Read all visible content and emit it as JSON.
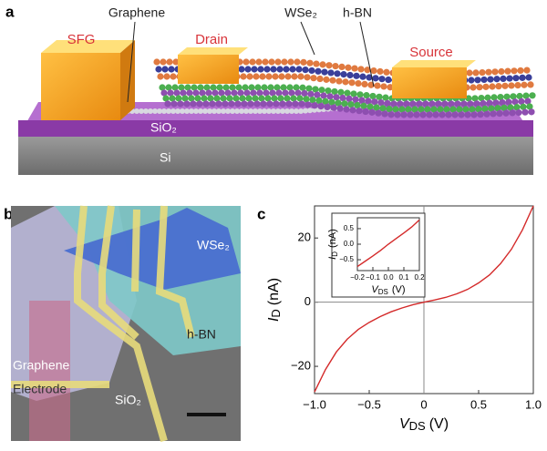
{
  "panel_a": {
    "label": "a",
    "texts": {
      "sfg": "SFG",
      "drain": "Drain",
      "source": "Source",
      "graphene": "Graphene",
      "wse2": "WSe₂",
      "hbn": "h-BN",
      "sio2": "SiO₂",
      "si": "Si"
    }
  },
  "panel_b": {
    "label": "b",
    "texts": {
      "wse2": "WSe₂",
      "hbn": "h-BN",
      "graphene": "Graphene",
      "electrode": "Electrode",
      "sio2": "SiO₂"
    }
  },
  "panel_c": {
    "label": "c"
  },
  "chart_data": [
    {
      "type": "line",
      "color": "#d42a2a",
      "zero_lines": true,
      "xlabel": {
        "symbol": "V",
        "subscript": "DS",
        "unit": "(V)"
      },
      "ylabel": {
        "symbol": "I",
        "subscript": "D",
        "unit": "(nA)"
      },
      "x": [
        -1.0,
        -0.9,
        -0.8,
        -0.7,
        -0.6,
        -0.5,
        -0.4,
        -0.3,
        -0.2,
        -0.1,
        0,
        0.1,
        0.2,
        0.3,
        0.4,
        0.5,
        0.6,
        0.7,
        0.8,
        0.9,
        1.0
      ],
      "values": [
        -28,
        -21,
        -15.5,
        -11.5,
        -8.5,
        -6.3,
        -4.5,
        -3,
        -1.8,
        -0.8,
        0,
        0.7,
        1.5,
        2.6,
        4,
        6,
        8.5,
        12,
        16.5,
        22.5,
        30
      ],
      "xlim": [
        -1,
        1
      ],
      "ylim": [
        -28.5,
        30
      ],
      "xticks": [
        {
          "value": -1,
          "label": "−1.0"
        },
        {
          "value": -0.5,
          "label": "−0.5"
        },
        0,
        0.5,
        {
          "value": 1,
          "label": "1.0"
        }
      ],
      "yticks": [
        {
          "value": -20,
          "label": "−20"
        },
        0,
        20
      ]
    },
    {
      "type": "line",
      "color": "#d42a2a",
      "zero_lines": false,
      "xlabel": {
        "symbol": "V",
        "subscript": "DS",
        "unit": "(V)"
      },
      "ylabel": {
        "symbol": "I",
        "subscript": "D",
        "unit": "(nA)"
      },
      "x": [
        -0.2,
        -0.15,
        -0.1,
        -0.05,
        0,
        0.05,
        0.1,
        0.15,
        0.2
      ],
      "values": [
        -0.72,
        -0.55,
        -0.38,
        -0.2,
        0,
        0.18,
        0.36,
        0.55,
        0.78
      ],
      "xlim": [
        -0.2,
        0.2
      ],
      "ylim": [
        -0.85,
        0.85
      ],
      "xticks": [
        {
          "value": -0.2,
          "label": "−0.2"
        },
        {
          "value": -0.1,
          "label": "−0.1"
        },
        {
          "value": 0,
          "label": "0.0"
        },
        0.1,
        0.2
      ],
      "yticks": [
        {
          "value": -0.5,
          "label": "−0.5"
        },
        {
          "value": 0,
          "label": "0.0"
        },
        0.5
      ]
    }
  ]
}
